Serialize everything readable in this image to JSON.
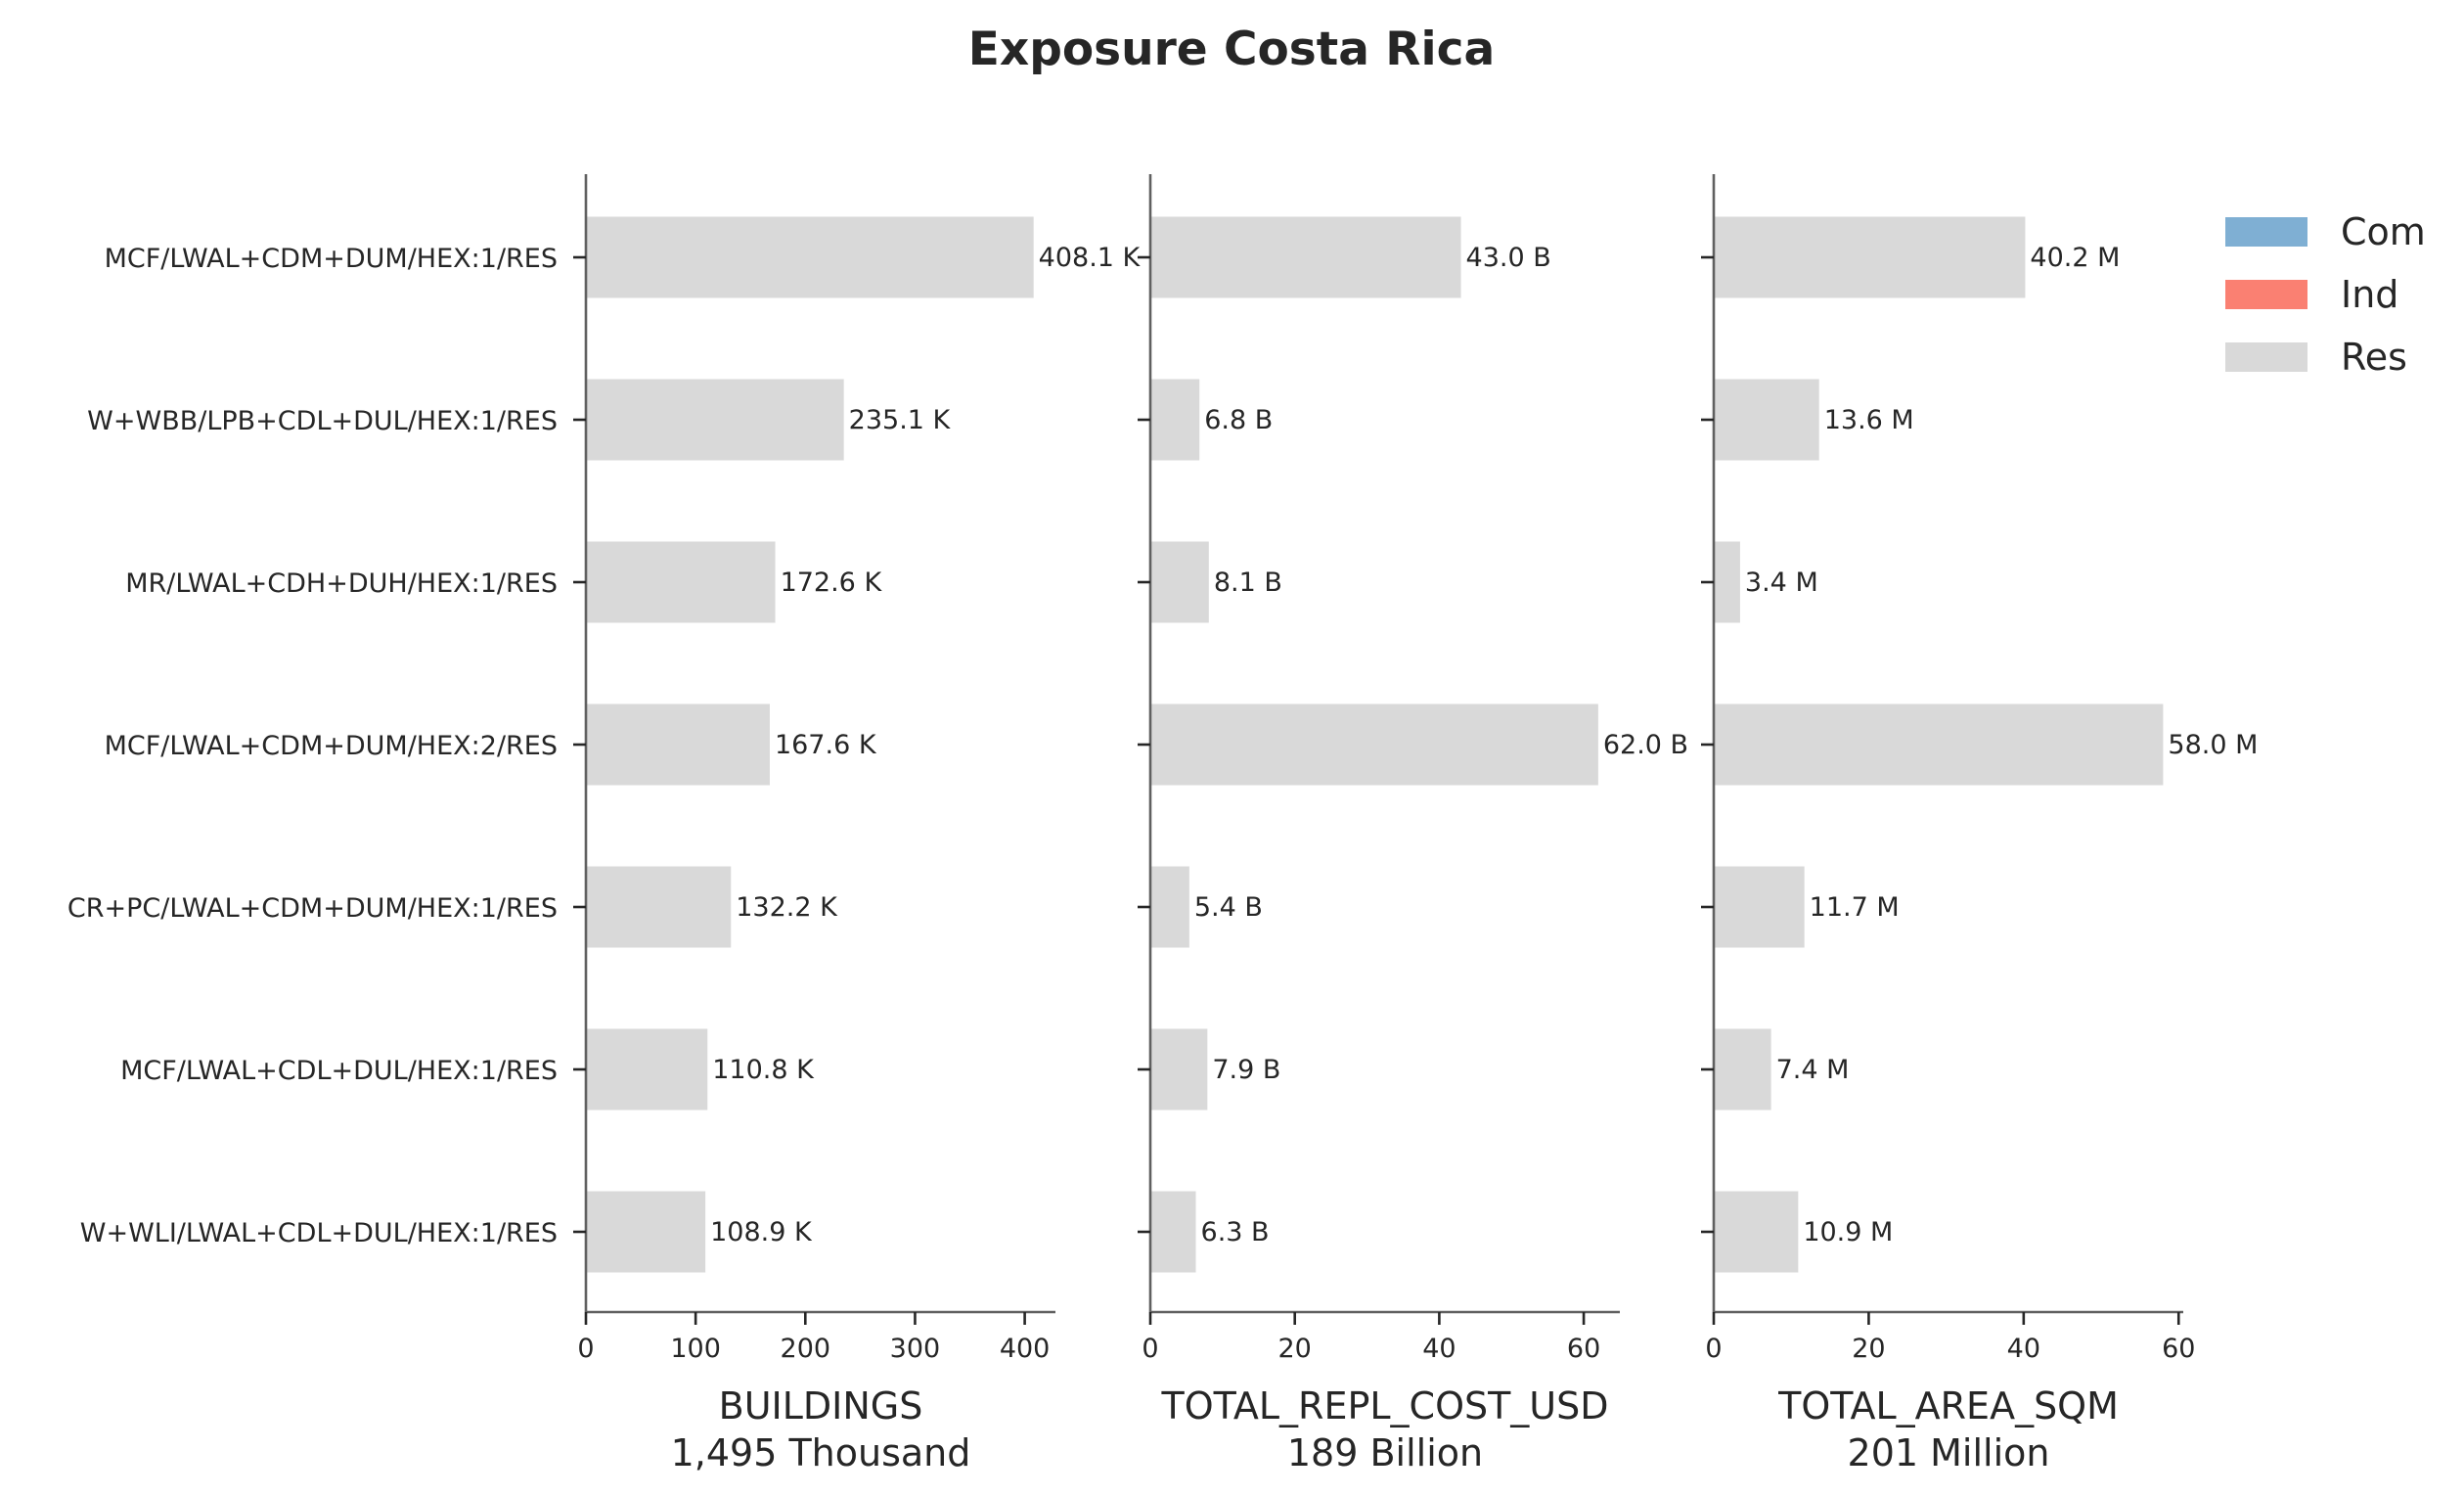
{
  "chart_data": {
    "type": "bar",
    "orientation": "horizontal",
    "title": "Exposure Costa Rica",
    "categories": [
      "MCF/LWAL+CDM+DUM/HEX:1/RES",
      "W+WBB/LPB+CDL+DUL/HEX:1/RES",
      "MR/LWAL+CDH+DUH/HEX:1/RES",
      "MCF/LWAL+CDM+DUM/HEX:2/RES",
      "CR+PC/LWAL+CDM+DUM/HEX:1/RES",
      "MCF/LWAL+CDL+DUL/HEX:1/RES",
      "W+WLI/LWAL+CDL+DUL/HEX:1/RES"
    ],
    "legend": {
      "placement": "top-right",
      "entries": [
        {
          "name": "Com",
          "color": "#7fafd3"
        },
        {
          "name": "Ind",
          "color": "#fa8072"
        },
        {
          "name": "Res",
          "color": "#d9d9d9"
        }
      ]
    },
    "grid": false,
    "panels": [
      {
        "xlabel": "BUILDINGS",
        "total_label": "1,495 Thousand",
        "series": "Res",
        "values": [
          408.1,
          235.1,
          172.6,
          167.6,
          132.2,
          110.8,
          108.9
        ],
        "value_labels": [
          "408.1 K",
          "235.1 K",
          "172.6 K",
          "167.6 K",
          "132.2 K",
          "110.8 K",
          "108.9 K"
        ],
        "xlim": [
          0,
          428
        ],
        "xticks": [
          0,
          100,
          200,
          300,
          400
        ],
        "show_category_labels": true
      },
      {
        "xlabel": "TOTAL_REPL_COST_USD",
        "total_label": "189 Billion",
        "series": "Res",
        "values": [
          43.0,
          6.8,
          8.1,
          62.0,
          5.4,
          7.9,
          6.3
        ],
        "value_labels": [
          "43.0 B",
          "6.8 B",
          "8.1 B",
          "62.0 B",
          "5.4 B",
          "7.9 B",
          "6.3 B"
        ],
        "xlim": [
          0,
          65
        ],
        "xticks": [
          0,
          20,
          40,
          60
        ],
        "show_category_labels": false
      },
      {
        "xlabel": "TOTAL_AREA_SQM",
        "total_label": "201 Million",
        "series": "Res",
        "values": [
          40.2,
          13.6,
          3.4,
          58.0,
          11.7,
          7.4,
          10.9
        ],
        "value_labels": [
          "40.2 M",
          "13.6 M",
          "3.4 M",
          "58.0 M",
          "11.7 M",
          "7.4 M",
          "10.9 M"
        ],
        "xlim": [
          0,
          60.6
        ],
        "xticks": [
          0,
          20,
          40,
          60
        ],
        "show_category_labels": false
      }
    ]
  }
}
